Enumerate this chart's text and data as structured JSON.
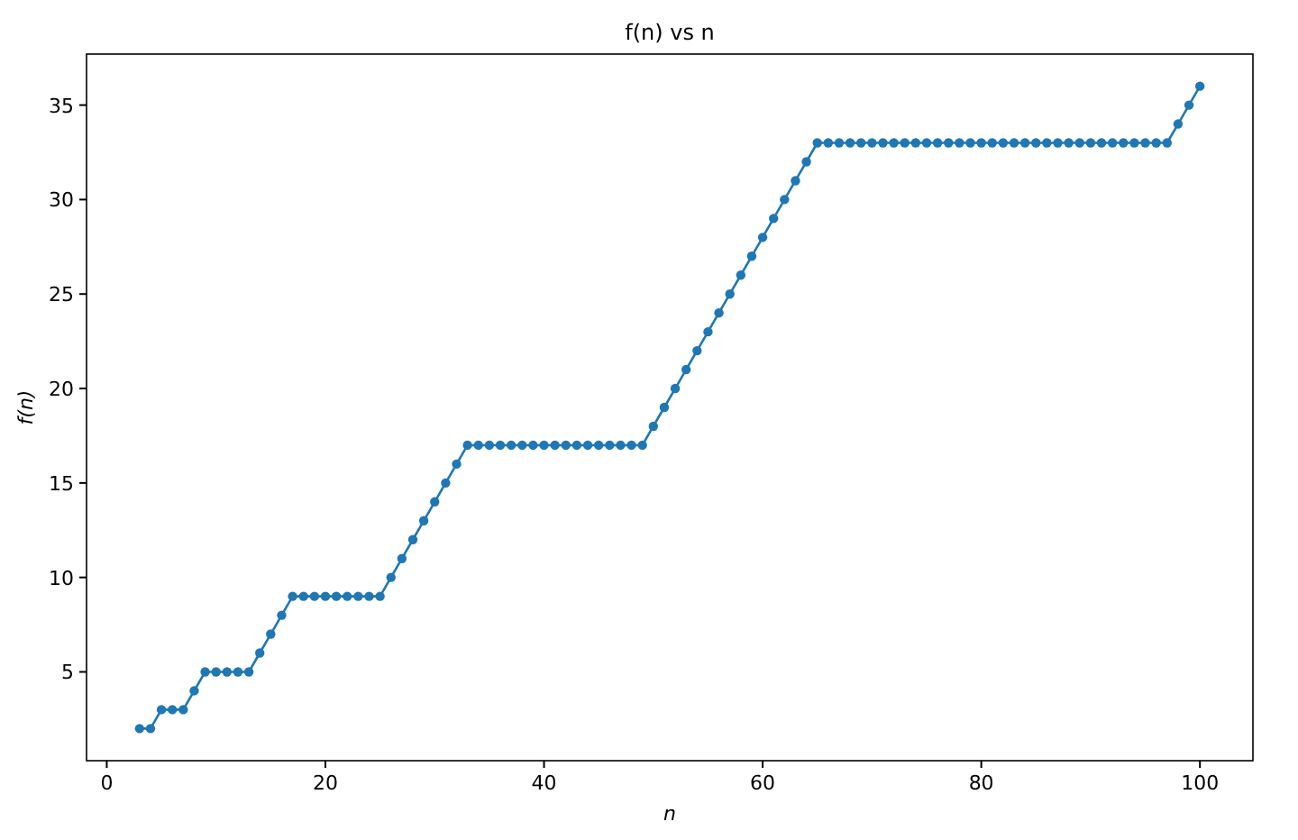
{
  "chart_data": {
    "type": "line",
    "title": "f(n) vs n",
    "xlabel": "n",
    "ylabel": "f(n)",
    "x": [
      3,
      4,
      5,
      6,
      7,
      8,
      9,
      10,
      11,
      12,
      13,
      14,
      15,
      16,
      17,
      18,
      19,
      20,
      21,
      22,
      23,
      24,
      25,
      26,
      27,
      28,
      29,
      30,
      31,
      32,
      33,
      34,
      35,
      36,
      37,
      38,
      39,
      40,
      41,
      42,
      43,
      44,
      45,
      46,
      47,
      48,
      49,
      50,
      51,
      52,
      53,
      54,
      55,
      56,
      57,
      58,
      59,
      60,
      61,
      62,
      63,
      64,
      65,
      66,
      67,
      68,
      69,
      70,
      71,
      72,
      73,
      74,
      75,
      76,
      77,
      78,
      79,
      80,
      81,
      82,
      83,
      84,
      85,
      86,
      87,
      88,
      89,
      90,
      91,
      92,
      93,
      94,
      95,
      96,
      97,
      98,
      99,
      100
    ],
    "series": [
      {
        "color": "#1f77b4",
        "values": [
          2,
          2,
          3,
          3,
          3,
          4,
          5,
          5,
          5,
          5,
          5,
          6,
          7,
          8,
          9,
          9,
          9,
          9,
          9,
          9,
          9,
          9,
          9,
          10,
          11,
          12,
          13,
          14,
          15,
          16,
          17,
          17,
          17,
          17,
          17,
          17,
          17,
          17,
          17,
          17,
          17,
          17,
          17,
          17,
          17,
          17,
          17,
          18,
          19,
          20,
          21,
          22,
          23,
          24,
          25,
          26,
          27,
          28,
          29,
          30,
          31,
          32,
          33,
          33,
          33,
          33,
          33,
          33,
          33,
          33,
          33,
          33,
          33,
          33,
          33,
          33,
          33,
          33,
          33,
          33,
          33,
          33,
          33,
          33,
          33,
          33,
          33,
          33,
          33,
          33,
          33,
          33,
          33,
          33,
          33,
          34,
          35,
          36
        ]
      }
    ],
    "xlim": [
      -1.85,
      104.85
    ],
    "ylim": [
      0.3,
      37.7
    ],
    "xticks": [
      0,
      20,
      40,
      60,
      80,
      100
    ],
    "yticks": [
      5,
      10,
      15,
      20,
      25,
      30,
      35
    ],
    "marker": "circle",
    "line_style": "solid",
    "grid": false
  }
}
